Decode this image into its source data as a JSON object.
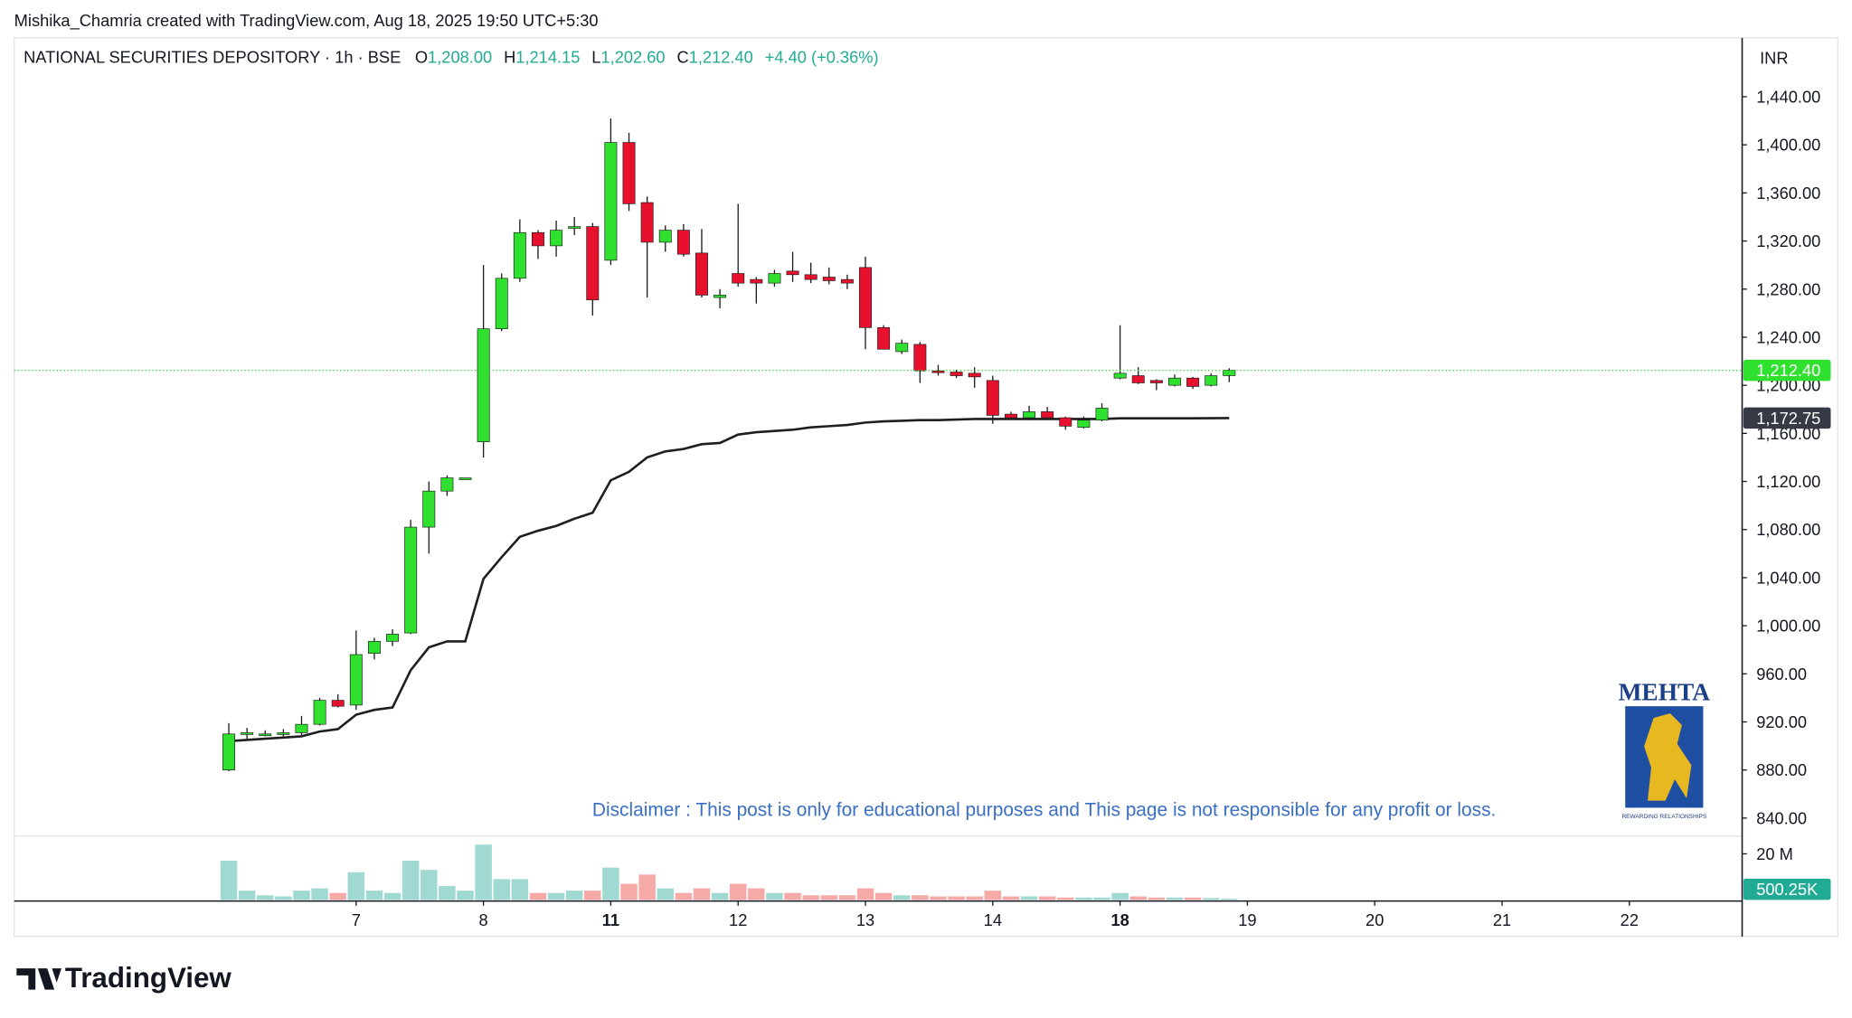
{
  "header": {
    "attribution": "Mishika_Chamria created with TradingView.com, Aug 18, 2025 19:50 UTC+5:30",
    "symbol": "NATIONAL SECURITIES DEPOSITORY · 1h · BSE",
    "ohlc": [
      {
        "label": "O",
        "value": "1,208.00"
      },
      {
        "label": "H",
        "value": "1,214.15"
      },
      {
        "label": "L",
        "value": "1,202.60"
      },
      {
        "label": "C",
        "value": "1,212.40"
      }
    ],
    "change": "+4.40 (+0.36%)"
  },
  "chart_data": {
    "type": "candlestick",
    "currency": "INR",
    "up_color": "#2fe02f",
    "down_color": "#e8112d",
    "border_color": "#1a1a1a",
    "x": [
      0,
      1,
      2,
      3,
      4,
      5,
      6,
      7,
      8,
      9,
      10,
      11,
      12,
      13,
      14,
      15,
      16,
      17,
      18,
      19,
      20,
      21,
      22,
      23,
      24,
      25,
      26,
      27,
      28,
      29,
      30,
      31,
      32,
      33,
      34,
      35,
      36,
      37,
      38,
      39,
      40,
      41,
      42,
      43,
      44,
      45,
      46,
      47,
      48,
      49,
      50,
      51,
      52,
      53,
      54,
      55
    ],
    "open": [
      880,
      910,
      910,
      910,
      911,
      918,
      938,
      934,
      977,
      987,
      994,
      1082,
      1112,
      1122,
      1153,
      1247,
      1289,
      1327,
      1316,
      1332,
      1332,
      1304,
      1402,
      1352,
      1319,
      1329,
      1310,
      1273,
      1293,
      1288,
      1285,
      1295,
      1292,
      1290,
      1288,
      1298,
      1248,
      1228,
      1234,
      1212,
      1211,
      1210,
      1204,
      1176,
      1173,
      1178,
      1173,
      1165,
      1171,
      1206,
      1208,
      1204,
      1200,
      1206,
      1200,
      1208
    ],
    "high": [
      919,
      915,
      913,
      914,
      925,
      940,
      943,
      996,
      990,
      997,
      1088,
      1120,
      1125,
      1123,
      1300,
      1293,
      1338,
      1329,
      1337,
      1340,
      1335,
      1422,
      1410,
      1357,
      1333,
      1334,
      1330,
      1280,
      1351,
      1290,
      1296,
      1311,
      1302,
      1298,
      1292,
      1307,
      1250,
      1238,
      1236,
      1217,
      1213,
      1215,
      1208,
      1178,
      1183,
      1182,
      1174,
      1174,
      1185,
      1250,
      1215,
      1205,
      1209,
      1207,
      1210,
      1214.15
    ],
    "low": [
      879,
      906,
      908,
      908,
      909,
      917,
      932,
      930,
      972,
      983,
      993,
      1060,
      1108,
      1122,
      1140,
      1245,
      1286,
      1305,
      1307,
      1325,
      1258,
      1300,
      1345,
      1273,
      1311,
      1307,
      1273,
      1264,
      1282,
      1268,
      1282,
      1286,
      1285,
      1284,
      1280,
      1230,
      1230,
      1226,
      1202,
      1208,
      1206,
      1198,
      1168,
      1172,
      1171,
      1172,
      1163,
      1164,
      1170,
      1205,
      1201,
      1196,
      1199,
      1197,
      1199,
      1202.6
    ],
    "close": [
      910,
      911,
      910,
      911,
      918,
      938,
      933,
      976,
      987,
      993,
      1082,
      1112,
      1123,
      1123,
      1247,
      1289,
      1327,
      1316,
      1329,
      1332,
      1271,
      1402,
      1351,
      1319,
      1329,
      1309,
      1275,
      1275,
      1285,
      1285,
      1293,
      1292,
      1288,
      1287,
      1285,
      1248,
      1230,
      1235,
      1212,
      1211,
      1208,
      1207,
      1175,
      1173,
      1178,
      1173,
      1166,
      1171,
      1181,
      1210,
      1202,
      1202,
      1206,
      1199,
      1208,
      1212.4
    ],
    "close_label": "1,212.40",
    "vwap": {
      "color": "#1f1f1f",
      "label_color": "#363a45",
      "values": [
        904,
        905,
        906,
        907,
        908,
        912,
        914,
        926,
        930,
        932,
        963,
        982,
        987,
        987,
        1039,
        1057,
        1074,
        1079,
        1083,
        1089,
        1094,
        1121,
        1128,
        1140,
        1145,
        1147,
        1151,
        1152,
        1159,
        1161,
        1162,
        1163,
        1165,
        1166,
        1167,
        1169,
        1170,
        1170.5,
        1171,
        1171,
        1171.5,
        1172,
        1172,
        1172,
        1172,
        1172,
        1172,
        1172,
        1172,
        1172.5,
        1172.5,
        1172.5,
        1172.5,
        1172.5,
        1172.6,
        1172.75
      ],
      "last_label": "1,172.75"
    },
    "xlim": [
      -11.8,
      83.2
    ],
    "ylim": [
      826,
      1489
    ],
    "yticks": [
      {
        "value": 1440,
        "label": "1,440.00"
      },
      {
        "value": 1400,
        "label": "1,400.00"
      },
      {
        "value": 1360,
        "label": "1,360.00"
      },
      {
        "value": 1320,
        "label": "1,320.00"
      },
      {
        "value": 1280,
        "label": "1,280.00"
      },
      {
        "value": 1240,
        "label": "1,240.00"
      },
      {
        "value": 1200,
        "label": "1,200.00"
      },
      {
        "value": 1160,
        "label": "1,160.00"
      },
      {
        "value": 1120,
        "label": "1,120.00"
      },
      {
        "value": 1080,
        "label": "1,080.00"
      },
      {
        "value": 1040,
        "label": "1,040.00"
      },
      {
        "value": 1000,
        "label": "1,000.00"
      },
      {
        "value": 960,
        "label": "960.00"
      },
      {
        "value": 920,
        "label": "920.00"
      },
      {
        "value": 880,
        "label": "880.00"
      },
      {
        "value": 840,
        "label": "840.00"
      }
    ],
    "xticks": [
      {
        "value": 7,
        "label": "7"
      },
      {
        "value": 14,
        "label": "8"
      },
      {
        "value": 21,
        "label": "11",
        "bold": true
      },
      {
        "value": 28,
        "label": "12"
      },
      {
        "value": 35,
        "label": "13"
      },
      {
        "value": 42,
        "label": "14"
      },
      {
        "value": 49,
        "label": "18",
        "bold": true
      },
      {
        "value": 56,
        "label": "19"
      },
      {
        "value": 63,
        "label": "20"
      },
      {
        "value": 70,
        "label": "21"
      },
      {
        "value": 77,
        "label": "22"
      }
    ],
    "volume": {
      "up_color": "#9fd9d1",
      "down_color": "#f6aaa8",
      "label_color": "#22ab94",
      "values": [
        17000000,
        4000000,
        2000000,
        1500000,
        4000000,
        5000000,
        3000000,
        12000000,
        4000000,
        3000000,
        17000000,
        13000000,
        6000000,
        4000000,
        24000000,
        9000000,
        9000000,
        3000000,
        3000000,
        4000000,
        4000000,
        14000000,
        7000000,
        11000000,
        5000000,
        3000000,
        5000000,
        3000000,
        7000000,
        5000000,
        3000000,
        3000000,
        2000000,
        2000000,
        2000000,
        5000000,
        3000000,
        2000000,
        2000000,
        1500000,
        1500000,
        1500000,
        4000000,
        1500000,
        1500000,
        1500000,
        1000000,
        1000000,
        1000000,
        3000000,
        1500000,
        1000000,
        1000000,
        1000000,
        800000,
        500250
      ],
      "last_label": "500.25K",
      "ylim": [
        0,
        27700000
      ],
      "yticks": [
        {
          "value": 20000000,
          "label": "20 M"
        }
      ]
    }
  },
  "disclaimer": "Disclaimer : This post is only for educational purposes and This page is not responsible for any profit or loss.",
  "logo": {
    "name": "MEHTA",
    "tagline": "REWARDING RELATIONSHIPS"
  },
  "footer": {
    "brand": "TradingView"
  }
}
